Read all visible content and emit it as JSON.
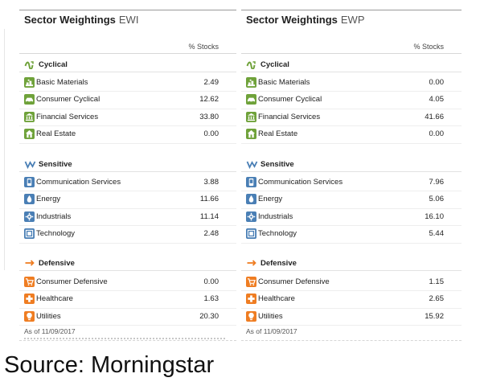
{
  "colors": {
    "basic_materials": "#6fa23a",
    "consumer_cyclical": "#6fa23a",
    "financial_services": "#6fa23a",
    "real_estate": "#6fa23a",
    "communication_services": "#4a7fb5",
    "energy": "#4a7fb5",
    "industrials": "#4a7fb5",
    "technology": "#4a7fb5",
    "consumer_defensive": "#ef7d22",
    "healthcare": "#ef7d22",
    "utilities": "#ef7d22"
  },
  "column_header": "% Stocks",
  "groups": {
    "cyclical": "Cyclical",
    "sensitive": "Sensitive",
    "defensive": "Defensive"
  },
  "panels": [
    {
      "title": "Sector Weightings",
      "ticker": "EWI",
      "as_of": "As of 11/09/2017",
      "cyclical": [
        {
          "label": "Basic Materials",
          "value": "2.49",
          "icon": "basic-materials-icon"
        },
        {
          "label": "Consumer Cyclical",
          "value": "12.62",
          "icon": "consumer-cyclical-icon"
        },
        {
          "label": "Financial Services",
          "value": "33.80",
          "icon": "financial-services-icon"
        },
        {
          "label": "Real Estate",
          "value": "0.00",
          "icon": "real-estate-icon"
        }
      ],
      "sensitive": [
        {
          "label": "Communication Services",
          "value": "3.88",
          "icon": "communication-services-icon"
        },
        {
          "label": "Energy",
          "value": "11.66",
          "icon": "energy-icon"
        },
        {
          "label": "Industrials",
          "value": "11.14",
          "icon": "industrials-icon"
        },
        {
          "label": "Technology",
          "value": "2.48",
          "icon": "technology-icon"
        }
      ],
      "defensive": [
        {
          "label": "Consumer Defensive",
          "value": "0.00",
          "icon": "consumer-defensive-icon"
        },
        {
          "label": "Healthcare",
          "value": "1.63",
          "icon": "healthcare-icon"
        },
        {
          "label": "Utilities",
          "value": "20.30",
          "icon": "utilities-icon"
        }
      ]
    },
    {
      "title": "Sector Weightings",
      "ticker": "EWP",
      "as_of": "As of 11/09/2017",
      "cyclical": [
        {
          "label": "Basic Materials",
          "value": "0.00",
          "icon": "basic-materials-icon"
        },
        {
          "label": "Consumer Cyclical",
          "value": "4.05",
          "icon": "consumer-cyclical-icon"
        },
        {
          "label": "Financial Services",
          "value": "41.66",
          "icon": "financial-services-icon"
        },
        {
          "label": "Real Estate",
          "value": "0.00",
          "icon": "real-estate-icon"
        }
      ],
      "sensitive": [
        {
          "label": "Communication Services",
          "value": "7.96",
          "icon": "communication-services-icon"
        },
        {
          "label": "Energy",
          "value": "5.06",
          "icon": "energy-icon"
        },
        {
          "label": "Industrials",
          "value": "16.10",
          "icon": "industrials-icon"
        },
        {
          "label": "Technology",
          "value": "5.44",
          "icon": "technology-icon"
        }
      ],
      "defensive": [
        {
          "label": "Consumer Defensive",
          "value": "1.15",
          "icon": "consumer-defensive-icon"
        },
        {
          "label": "Healthcare",
          "value": "2.65",
          "icon": "healthcare-icon"
        },
        {
          "label": "Utilities",
          "value": "15.92",
          "icon": "utilities-icon"
        }
      ]
    }
  ],
  "source_caption": "Source: Morningstar"
}
